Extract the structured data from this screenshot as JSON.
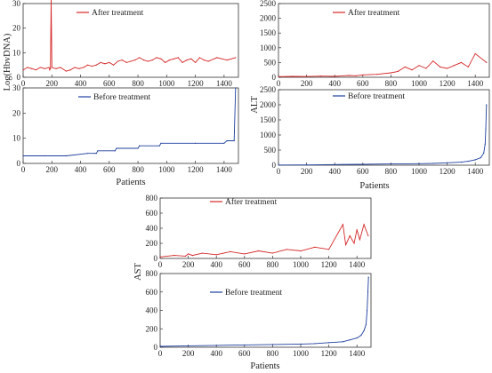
{
  "colors": {
    "after": "#d62728",
    "before": "#1f3f9e",
    "axis": "#333333"
  },
  "figure": {
    "left_ylabel": "Log(HbvDNA)",
    "right_ylabel": "ALT",
    "bottom_ylabel": "AST",
    "left_xlabel": "Patients",
    "right_xlabel": "Patients",
    "bottom_xlabel": "Patients"
  },
  "chart_data": [
    {
      "type": "line",
      "panel": "left-top",
      "series": [
        {
          "name": "After treatment",
          "values": [
            3,
            4,
            3.5,
            3,
            4,
            3.5,
            4,
            3,
            3.5,
            32,
            4,
            3.5,
            4,
            2.5,
            3,
            4,
            3.5,
            4,
            5,
            4.5,
            5,
            6,
            5.5,
            6,
            5,
            6.5,
            7,
            6,
            6.5,
            7,
            8,
            7,
            6.5,
            7,
            8,
            7.5,
            6,
            7,
            7.5,
            8,
            6,
            7,
            7.5,
            6,
            8,
            7,
            6.5,
            8,
            7,
            8
          ]
        }
      ],
      "x": [
        1,
        30,
        60,
        90,
        120,
        150,
        180,
        185,
        190,
        195,
        200,
        230,
        260,
        300,
        330,
        360,
        390,
        420,
        450,
        480,
        510,
        540,
        570,
        600,
        630,
        660,
        690,
        720,
        750,
        780,
        810,
        840,
        870,
        900,
        930,
        960,
        990,
        1020,
        1050,
        1080,
        1110,
        1140,
        1170,
        1200,
        1230,
        1260,
        1290,
        1350,
        1420,
        1480
      ],
      "xlim": [
        0,
        1500
      ],
      "ylim": [
        0,
        30
      ],
      "x_ticks": [
        0,
        200,
        400,
        600,
        800,
        1000,
        1200,
        1400
      ],
      "y_ticks": [
        0,
        10,
        20,
        30
      ],
      "x_tick_labels": [
        "0",
        "200",
        "400",
        "600",
        "800",
        "1000",
        "1200",
        "1400"
      ],
      "y_tick_labels": [
        "0",
        "10",
        "20",
        "30"
      ]
    },
    {
      "type": "line",
      "panel": "left-bottom",
      "series": [
        {
          "name": "Before treatment",
          "values": [
            3,
            3,
            3,
            3,
            4,
            4,
            4,
            5,
            5,
            6,
            6,
            7,
            7,
            8,
            8,
            8,
            9,
            9,
            30
          ]
        }
      ],
      "x": [
        1,
        150,
        300,
        301,
        450,
        500,
        510,
        520,
        640,
        650,
        800,
        810,
        950,
        960,
        1200,
        1400,
        1420,
        1470,
        1480
      ],
      "xlim": [
        0,
        1500
      ],
      "ylim": [
        0,
        30
      ],
      "x_ticks": [
        0,
        200,
        400,
        600,
        800,
        1000,
        1200,
        1400
      ],
      "y_ticks": [
        0,
        10,
        20,
        30
      ],
      "x_tick_labels": [
        "0",
        "200",
        "400",
        "600",
        "800",
        "1000",
        "1200",
        "1400"
      ],
      "y_tick_labels": [
        "0",
        "10",
        "20",
        "30"
      ]
    },
    {
      "type": "line",
      "panel": "right-top",
      "series": [
        {
          "name": "After treatment",
          "values": [
            20,
            30,
            25,
            40,
            30,
            60,
            50,
            80,
            100,
            150,
            200,
            350,
            250,
            400,
            300,
            550,
            350,
            300,
            400,
            500,
            350,
            800,
            500
          ]
        }
      ],
      "x": [
        1,
        100,
        200,
        300,
        400,
        500,
        550,
        600,
        700,
        800,
        850,
        900,
        950,
        1000,
        1050,
        1100,
        1150,
        1200,
        1250,
        1300,
        1350,
        1400,
        1480
      ],
      "xlim": [
        0,
        1500
      ],
      "ylim": [
        0,
        2500
      ],
      "x_ticks": [
        0,
        200,
        400,
        600,
        800,
        1000,
        1200,
        1400
      ],
      "y_ticks": [
        0,
        500,
        1000,
        1500,
        2000,
        2500
      ],
      "x_tick_labels": [
        "0",
        "200",
        "400",
        "600",
        "800",
        "1000",
        "1200",
        "1400"
      ],
      "y_tick_labels": [
        "0",
        "500",
        "1000",
        "1500",
        "2000",
        "2500"
      ]
    },
    {
      "type": "line",
      "panel": "right-bottom",
      "series": [
        {
          "name": "Before treatment",
          "values": [
            5,
            10,
            20,
            30,
            40,
            50,
            60,
            80,
            100,
            130,
            180,
            250,
            400,
            700,
            1200,
            2000
          ]
        }
      ],
      "x": [
        1,
        200,
        400,
        600,
        800,
        1000,
        1100,
        1200,
        1300,
        1350,
        1400,
        1440,
        1460,
        1470,
        1475,
        1480
      ],
      "xlim": [
        0,
        1500
      ],
      "ylim": [
        0,
        2500
      ],
      "x_ticks": [
        0,
        200,
        400,
        600,
        800,
        1000,
        1200,
        1400
      ],
      "y_ticks": [
        0,
        500,
        1000,
        1500,
        2000,
        2500
      ],
      "x_tick_labels": [
        "0",
        "200",
        "400",
        "600",
        "800",
        "1000",
        "1200",
        "1400"
      ],
      "y_tick_labels": [
        "0",
        "500",
        "1000",
        "1500",
        "2000",
        "2500"
      ]
    },
    {
      "type": "line",
      "panel": "bottom-top",
      "series": [
        {
          "name": "After treatment",
          "values": [
            20,
            40,
            30,
            60,
            40,
            70,
            50,
            90,
            60,
            100,
            70,
            120,
            100,
            150,
            120,
            450,
            180,
            300,
            200,
            380,
            250,
            450,
            300
          ]
        }
      ],
      "x": [
        1,
        100,
        180,
        200,
        230,
        300,
        400,
        500,
        600,
        700,
        800,
        900,
        1000,
        1100,
        1200,
        1300,
        1320,
        1350,
        1380,
        1400,
        1420,
        1450,
        1480
      ],
      "xlim": [
        0,
        1500
      ],
      "ylim": [
        0,
        800
      ],
      "x_ticks": [
        0,
        200,
        400,
        600,
        800,
        1000,
        1200,
        1400
      ],
      "y_ticks": [
        0,
        200,
        400,
        600,
        800
      ],
      "x_tick_labels": [
        "0",
        "200",
        "400",
        "600",
        "800",
        "1000",
        "1200",
        "1400"
      ],
      "y_tick_labels": [
        "0",
        "200",
        "400",
        "600",
        "800"
      ]
    },
    {
      "type": "line",
      "panel": "bottom-bottom",
      "series": [
        {
          "name": "Before treatment",
          "values": [
            10,
            15,
            20,
            25,
            30,
            35,
            40,
            50,
            60,
            80,
            100,
            130,
            180,
            250,
            400,
            600,
            760
          ]
        }
      ],
      "x": [
        1,
        200,
        400,
        600,
        800,
        1000,
        1100,
        1200,
        1300,
        1350,
        1400,
        1430,
        1450,
        1465,
        1472,
        1478,
        1482
      ],
      "xlim": [
        0,
        1500
      ],
      "ylim": [
        0,
        800
      ],
      "x_ticks": [
        0,
        200,
        400,
        600,
        800,
        1000,
        1200,
        1400
      ],
      "y_ticks": [
        0,
        200,
        400,
        600,
        800
      ],
      "x_tick_labels": [
        "0",
        "200",
        "400",
        "600",
        "800",
        "1000",
        "1200",
        "1400"
      ],
      "y_tick_labels": [
        "0",
        "200",
        "400",
        "600",
        "800"
      ]
    }
  ]
}
